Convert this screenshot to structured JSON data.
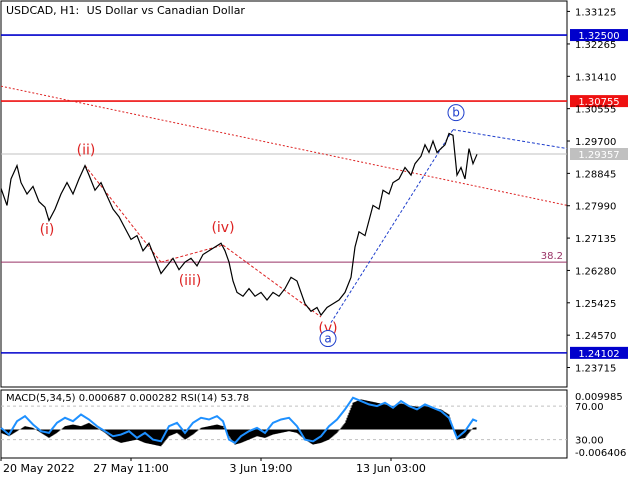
{
  "header": {
    "symbol": "USDCAD, H1:",
    "description": "US Dollar vs Canadian Dollar"
  },
  "chart_data": {
    "type": "line",
    "title": "USDCAD, H1: US Dollar vs Canadian Dollar",
    "ylim": [
      1.232,
      1.334
    ],
    "price_ticks": [
      "1.33125",
      "1.32265",
      "1.31410",
      "1.30555",
      "1.29700",
      "1.28845",
      "1.27990",
      "1.27135",
      "1.26280",
      "1.25425",
      "1.24570",
      "1.23715"
    ],
    "x_ticks": [
      {
        "label": "20 May 2022",
        "x": 0
      },
      {
        "label": "27 May 11:00",
        "x": 130
      },
      {
        "label": "3 Jun 19:00",
        "x": 260
      },
      {
        "label": "13 Jun 03:00",
        "x": 390
      }
    ],
    "x_range": [
      0,
      566
    ],
    "price_series": [
      [
        0,
        1.2845
      ],
      [
        6,
        1.28
      ],
      [
        10,
        1.287
      ],
      [
        16,
        1.2905
      ],
      [
        20,
        1.286
      ],
      [
        26,
        1.283
      ],
      [
        32,
        1.285
      ],
      [
        38,
        1.281
      ],
      [
        44,
        1.2795
      ],
      [
        48,
        1.276
      ],
      [
        54,
        1.279
      ],
      [
        60,
        1.283
      ],
      [
        66,
        1.286
      ],
      [
        72,
        1.283
      ],
      [
        78,
        1.287
      ],
      [
        84,
        1.2905
      ],
      [
        88,
        1.288
      ],
      [
        94,
        1.284
      ],
      [
        100,
        1.286
      ],
      [
        106,
        1.2825
      ],
      [
        112,
        1.279
      ],
      [
        118,
        1.277
      ],
      [
        124,
        1.274
      ],
      [
        130,
        1.271
      ],
      [
        136,
        1.272
      ],
      [
        142,
        1.268
      ],
      [
        148,
        1.27
      ],
      [
        154,
        1.266
      ],
      [
        160,
        1.262
      ],
      [
        166,
        1.264
      ],
      [
        172,
        1.266
      ],
      [
        178,
        1.263
      ],
      [
        184,
        1.265
      ],
      [
        190,
        1.266
      ],
      [
        196,
        1.264
      ],
      [
        202,
        1.267
      ],
      [
        208,
        1.268
      ],
      [
        214,
        1.269
      ],
      [
        220,
        1.27
      ],
      [
        224,
        1.268
      ],
      [
        228,
        1.265
      ],
      [
        232,
        1.26
      ],
      [
        236,
        1.257
      ],
      [
        242,
        1.256
      ],
      [
        248,
        1.258
      ],
      [
        254,
        1.256
      ],
      [
        260,
        1.257
      ],
      [
        266,
        1.255
      ],
      [
        272,
        1.257
      ],
      [
        278,
        1.256
      ],
      [
        284,
        1.258
      ],
      [
        290,
        1.261
      ],
      [
        296,
        1.26
      ],
      [
        300,
        1.257
      ],
      [
        304,
        1.254
      ],
      [
        310,
        1.252
      ],
      [
        316,
        1.253
      ],
      [
        320,
        1.251
      ],
      [
        326,
        1.253
      ],
      [
        332,
        1.254
      ],
      [
        338,
        1.255
      ],
      [
        344,
        1.257
      ],
      [
        350,
        1.261
      ],
      [
        354,
        1.269
      ],
      [
        358,
        1.273
      ],
      [
        364,
        1.272
      ],
      [
        368,
        1.276
      ],
      [
        372,
        1.28
      ],
      [
        378,
        1.279
      ],
      [
        382,
        1.284
      ],
      [
        388,
        1.283
      ],
      [
        392,
        1.286
      ],
      [
        398,
        1.287
      ],
      [
        404,
        1.29
      ],
      [
        410,
        1.288
      ],
      [
        414,
        1.291
      ],
      [
        420,
        1.293
      ],
      [
        424,
        1.296
      ],
      [
        428,
        1.294
      ],
      [
        432,
        1.297
      ],
      [
        436,
        1.294
      ],
      [
        440,
        1.295
      ],
      [
        444,
        1.296
      ],
      [
        448,
        1.299
      ],
      [
        452,
        1.2985
      ],
      [
        456,
        1.288
      ],
      [
        460,
        1.29
      ],
      [
        464,
        1.287
      ],
      [
        468,
        1.295
      ],
      [
        472,
        1.291
      ],
      [
        476,
        1.2935
      ]
    ],
    "levels": [
      {
        "price": 1.325,
        "label": "1.32500",
        "color": "#0000cc",
        "label_bg": "#0000cc",
        "style": "solid"
      },
      {
        "price": 1.30755,
        "label": "1.30755",
        "color": "#ee1111",
        "label_bg": "#ee1111",
        "style": "solid"
      },
      {
        "price": 1.29357,
        "label": "1.29357",
        "color": "#c0c0c0",
        "label_bg": "#c0c0c0",
        "style": "solid"
      },
      {
        "price": 1.265,
        "label": "38.2",
        "color": "#993366",
        "label_bg": "",
        "style": "fib"
      },
      {
        "price": 1.24102,
        "label": "1.24102",
        "color": "#0000cc",
        "label_bg": "#0000cc",
        "style": "solid"
      }
    ],
    "trendlines": [
      {
        "x1": 0,
        "p1": 1.3115,
        "x2": 566,
        "p2": 1.28,
        "color": "#dd2222",
        "dash": "2,2"
      },
      {
        "x1": 84,
        "p1": 1.2905,
        "x2": 160,
        "p2": 1.265,
        "color": "#dd2222",
        "dash": "3,2"
      },
      {
        "x1": 160,
        "p1": 1.265,
        "x2": 222,
        "p2": 1.2695,
        "color": "#dd2222",
        "dash": "3,2"
      },
      {
        "x1": 222,
        "p1": 1.2695,
        "x2": 320,
        "p2": 1.2505,
        "color": "#dd2222",
        "dash": "3,2"
      },
      {
        "x1": 330,
        "p1": 1.249,
        "x2": 452,
        "p2": 1.3,
        "color": "#1f3fcc",
        "dash": "3,2"
      },
      {
        "x1": 452,
        "p1": 1.3,
        "x2": 566,
        "p2": 1.295,
        "color": "#1f3fcc",
        "dash": "3,2"
      }
    ],
    "wave_labels": [
      {
        "text": "(i)",
        "x": 46,
        "p": 1.2735,
        "color": "#dd2222",
        "circle": false
      },
      {
        "text": "(ii)",
        "x": 85,
        "p": 1.2945,
        "color": "#dd2222",
        "circle": false
      },
      {
        "text": "(iii)",
        "x": 189,
        "p": 1.26,
        "color": "#dd2222",
        "circle": false
      },
      {
        "text": "(iv)",
        "x": 222,
        "p": 1.274,
        "color": "#dd2222",
        "circle": false
      },
      {
        "text": "(v)",
        "x": 327,
        "p": 1.2475,
        "color": "#dd2222",
        "circle": false
      },
      {
        "text": "a",
        "x": 327,
        "p": 1.2448,
        "color": "#1f3fcc",
        "circle": true
      },
      {
        "text": "b",
        "x": 455,
        "p": 1.3045,
        "color": "#1f3fcc",
        "circle": true
      }
    ],
    "indicator": {
      "label": "MACD(5,34,5) 0.000687 0.000282 RSI(14) 53.78",
      "ylim": [
        -0.0085,
        0.0118
      ],
      "ticks": [
        "0.009985",
        "70.00",
        "30.00",
        "-0.006406"
      ],
      "macd": [
        [
          0,
          -0.001
        ],
        [
          8,
          -0.002
        ],
        [
          16,
          -0.0005
        ],
        [
          24,
          0.001
        ],
        [
          32,
          0.0005
        ],
        [
          40,
          -0.001
        ],
        [
          48,
          -0.0025
        ],
        [
          56,
          -0.001
        ],
        [
          64,
          0.001
        ],
        [
          72,
          0.0015
        ],
        [
          80,
          0.001
        ],
        [
          88,
          0.002
        ],
        [
          96,
          0.0005
        ],
        [
          104,
          -0.001
        ],
        [
          112,
          -0.003
        ],
        [
          120,
          -0.004
        ],
        [
          128,
          -0.0035
        ],
        [
          136,
          -0.003
        ],
        [
          144,
          -0.004
        ],
        [
          152,
          -0.0045
        ],
        [
          160,
          -0.005
        ],
        [
          168,
          -0.002
        ],
        [
          176,
          -0.001
        ],
        [
          184,
          -0.003
        ],
        [
          192,
          -0.0015
        ],
        [
          200,
          0.0005
        ],
        [
          208,
          0.001
        ],
        [
          216,
          0.0015
        ],
        [
          222,
          0.001
        ],
        [
          228,
          -0.002
        ],
        [
          234,
          -0.0045
        ],
        [
          240,
          -0.004
        ],
        [
          248,
          -0.003
        ],
        [
          256,
          -0.002
        ],
        [
          264,
          -0.0025
        ],
        [
          272,
          -0.0015
        ],
        [
          280,
          -0.001
        ],
        [
          288,
          -0.0005
        ],
        [
          296,
          -0.001
        ],
        [
          304,
          -0.003
        ],
        [
          312,
          -0.0045
        ],
        [
          320,
          -0.004
        ],
        [
          328,
          -0.003
        ],
        [
          336,
          -0.001
        ],
        [
          344,
          0.002
        ],
        [
          352,
          0.008
        ],
        [
          360,
          0.009
        ],
        [
          368,
          0.0085
        ],
        [
          376,
          0.008
        ],
        [
          384,
          0.0075
        ],
        [
          392,
          0.007
        ],
        [
          400,
          0.0078
        ],
        [
          408,
          0.0072
        ],
        [
          416,
          0.0068
        ],
        [
          424,
          0.007
        ],
        [
          432,
          0.0065
        ],
        [
          440,
          0.006
        ],
        [
          448,
          0.0045
        ],
        [
          456,
          -0.003
        ],
        [
          464,
          -0.0025
        ],
        [
          472,
          0.0005
        ],
        [
          476,
          0.0007
        ]
      ],
      "rsi": [
        [
          0,
          0.0005
        ],
        [
          8,
          -0.0015
        ],
        [
          16,
          0.0025
        ],
        [
          24,
          0.004
        ],
        [
          32,
          0.0015
        ],
        [
          40,
          -0.0005
        ],
        [
          48,
          -0.001
        ],
        [
          56,
          0.002
        ],
        [
          64,
          0.0035
        ],
        [
          72,
          0.0025
        ],
        [
          80,
          0.0045
        ],
        [
          88,
          0.003
        ],
        [
          96,
          0.001
        ],
        [
          104,
          -0.0005
        ],
        [
          112,
          -0.002
        ],
        [
          120,
          -0.0015
        ],
        [
          128,
          -0.0005
        ],
        [
          136,
          -0.0025
        ],
        [
          144,
          -0.001
        ],
        [
          152,
          -0.003
        ],
        [
          160,
          -0.0035
        ],
        [
          168,
          0.001
        ],
        [
          176,
          0.002
        ],
        [
          184,
          -0.001
        ],
        [
          192,
          0.002
        ],
        [
          200,
          0.0035
        ],
        [
          208,
          0.003
        ],
        [
          216,
          0.004
        ],
        [
          222,
          0.0025
        ],
        [
          228,
          -0.003
        ],
        [
          234,
          -0.004
        ],
        [
          240,
          -0.002
        ],
        [
          248,
          -0.0005
        ],
        [
          256,
          0.0005
        ],
        [
          264,
          -0.001
        ],
        [
          272,
          0.002
        ],
        [
          280,
          0.003
        ],
        [
          288,
          0.0035
        ],
        [
          296,
          0.001
        ],
        [
          304,
          -0.003
        ],
        [
          312,
          -0.0035
        ],
        [
          320,
          -0.002
        ],
        [
          328,
          0.001
        ],
        [
          336,
          0.003
        ],
        [
          344,
          0.006
        ],
        [
          352,
          0.0095
        ],
        [
          360,
          0.0085
        ],
        [
          368,
          0.0075
        ],
        [
          376,
          0.007
        ],
        [
          384,
          0.008
        ],
        [
          392,
          0.0065
        ],
        [
          400,
          0.0085
        ],
        [
          408,
          0.007
        ],
        [
          416,
          0.006
        ],
        [
          424,
          0.0075
        ],
        [
          432,
          0.0065
        ],
        [
          440,
          0.0055
        ],
        [
          448,
          0.0035
        ],
        [
          456,
          -0.0025
        ],
        [
          464,
          -0.0005
        ],
        [
          472,
          0.003
        ],
        [
          476,
          0.0025
        ]
      ]
    }
  },
  "colors": {
    "price_line": "#000000",
    "grid": "#c0c0c0",
    "rsi_line": "#1e90ff",
    "macd_fill": "#000000"
  }
}
